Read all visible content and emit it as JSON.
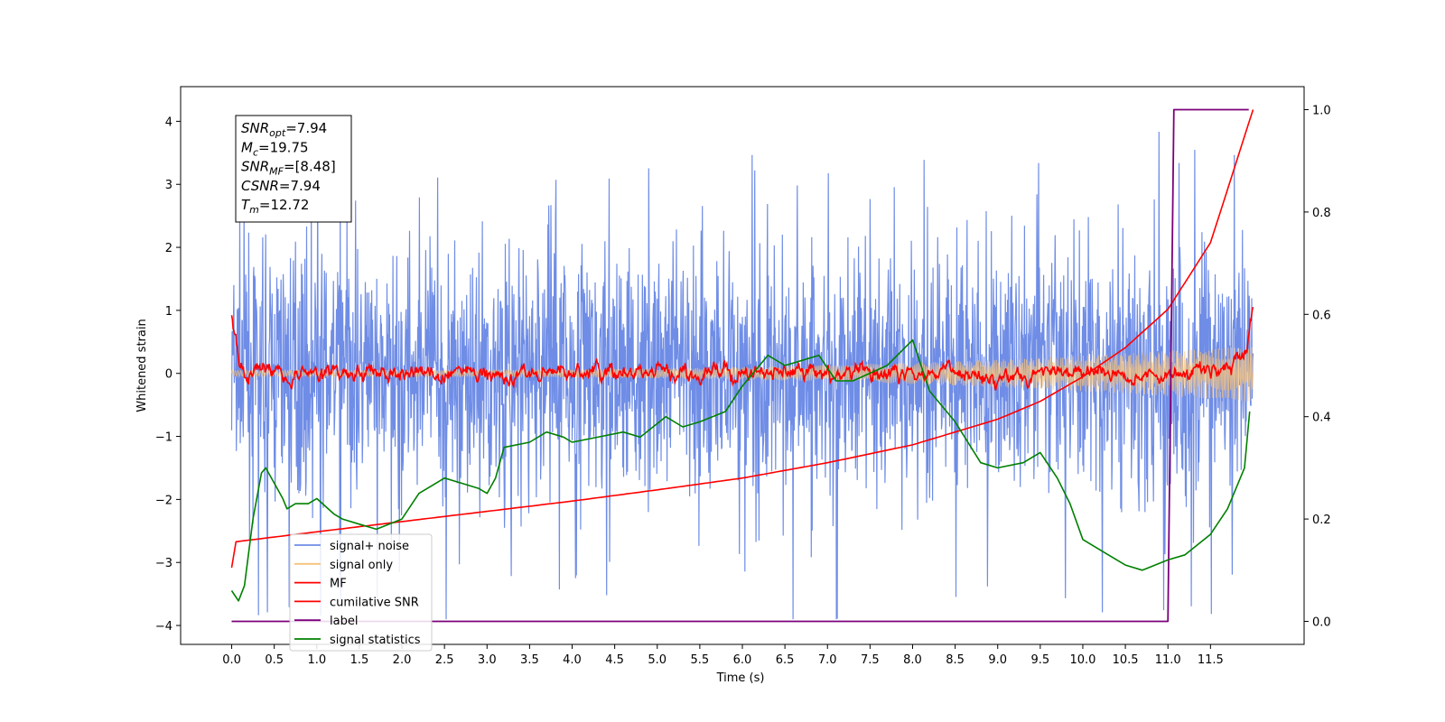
{
  "chart_data": {
    "type": "line",
    "xlabel": "Time (s)",
    "ylabel": "Whitened strain",
    "xlim": [
      -0.6,
      12.6
    ],
    "ylim": [
      -4.3,
      4.55
    ],
    "ylim_right": [
      -0.045,
      1.045
    ],
    "x_ticks": [
      "0.0",
      "0.5",
      "1.0",
      "1.5",
      "2.0",
      "2.5",
      "3.0",
      "3.5",
      "4.0",
      "4.5",
      "5.0",
      "5.5",
      "6.0",
      "6.5",
      "7.0",
      "7.5",
      "8.0",
      "8.5",
      "9.0",
      "9.5",
      "10.0",
      "10.5",
      "11.0",
      "11.5"
    ],
    "y_ticks": [
      "4",
      "3",
      "2",
      "1",
      "0",
      "−1",
      "−2",
      "−3",
      "−4"
    ],
    "y_ticks_right": [
      "1.0",
      "0.8",
      "0.6",
      "0.4",
      "0.2",
      "0.0"
    ],
    "grid": false,
    "legend_position": "lower-left",
    "info_box": [
      {
        "main": "SNR",
        "sub": "opt",
        "value": "=7.94"
      },
      {
        "main": "M",
        "sub": "c",
        "value": "=19.75"
      },
      {
        "main": "SNR",
        "sub": "MF",
        "value": "=[8.48]"
      },
      {
        "main": "CSNR",
        "sub": "",
        "value": "=7.94"
      },
      {
        "main": "T",
        "sub": "m",
        "value": "=12.72"
      }
    ],
    "series": [
      {
        "name": "signal+ noise",
        "color": "#6f8de6",
        "axis": "left",
        "envelope": {
          "x": [
            0,
            12
          ],
          "typical_range": [
            -1.5,
            1.7
          ],
          "max": 4.15,
          "min": -3.9
        }
      },
      {
        "name": "signal only",
        "color": "#f5c27a",
        "axis": "left",
        "chirp": {
          "x": [
            0,
            12
          ],
          "amplitude_start": 0.05,
          "amplitude_end": 0.45
        }
      },
      {
        "name": "MF",
        "color": "#ff0000",
        "axis": "left",
        "x": [
          0.0,
          0.05,
          0.1,
          0.2,
          0.3,
          0.4,
          0.6,
          1.0,
          2.0,
          3.0,
          4.0,
          5.0,
          6.0,
          7.0,
          8.0,
          9.0,
          10.0,
          11.0,
          11.5,
          11.8,
          11.93,
          12.0
        ],
        "y": [
          0.95,
          0.7,
          0.1,
          -0.05,
          0.25,
          0.1,
          0.0,
          0.0,
          0.0,
          0.0,
          0.0,
          0.0,
          0.0,
          0.0,
          0.0,
          0.0,
          0.0,
          0.0,
          0.05,
          0.15,
          0.4,
          0.95
        ]
      },
      {
        "name": "cumilative SNR",
        "color": "#ff0000",
        "axis": "right",
        "x": [
          0.0,
          0.02,
          1.0,
          2.0,
          3.0,
          4.0,
          5.0,
          6.0,
          7.0,
          8.0,
          9.0,
          9.5,
          10.0,
          10.5,
          11.0,
          11.5,
          12.0
        ],
        "y": [
          0.105,
          0.155,
          0.175,
          0.195,
          0.215,
          0.235,
          0.257,
          0.28,
          0.31,
          0.345,
          0.395,
          0.43,
          0.478,
          0.535,
          0.61,
          0.74,
          1.0
        ]
      },
      {
        "name": "label",
        "color": "#7b007b",
        "axis": "right",
        "x": [
          0.0,
          11.0,
          11.07,
          11.95
        ],
        "y": [
          0.0,
          0.0,
          1.0,
          1.0
        ]
      },
      {
        "name": "signal statistics",
        "color": "#008000",
        "axis": "right",
        "x": [
          0.0,
          0.08,
          0.15,
          0.25,
          0.35,
          0.4,
          0.5,
          0.6,
          0.65,
          0.75,
          0.9,
          1.0,
          1.2,
          1.3,
          1.5,
          1.7,
          2.0,
          2.2,
          2.4,
          2.5,
          2.7,
          2.9,
          3.0,
          3.1,
          3.2,
          3.5,
          3.7,
          3.9,
          4.0,
          4.3,
          4.6,
          4.8,
          5.1,
          5.3,
          5.5,
          5.8,
          6.0,
          6.3,
          6.5,
          6.9,
          7.1,
          7.3,
          7.7,
          8.0,
          8.2,
          8.5,
          8.8,
          9.0,
          9.3,
          9.5,
          9.7,
          9.85,
          10.0,
          10.3,
          10.5,
          10.7,
          11.0,
          11.2,
          11.5,
          11.7,
          11.9,
          11.96
        ],
        "y": [
          0.06,
          0.04,
          0.07,
          0.2,
          0.29,
          0.3,
          0.27,
          0.24,
          0.22,
          0.23,
          0.23,
          0.24,
          0.21,
          0.2,
          0.19,
          0.18,
          0.2,
          0.25,
          0.27,
          0.28,
          0.27,
          0.26,
          0.25,
          0.28,
          0.34,
          0.35,
          0.37,
          0.36,
          0.35,
          0.36,
          0.37,
          0.36,
          0.4,
          0.38,
          0.39,
          0.41,
          0.46,
          0.52,
          0.5,
          0.52,
          0.47,
          0.47,
          0.5,
          0.55,
          0.45,
          0.39,
          0.31,
          0.3,
          0.31,
          0.33,
          0.28,
          0.23,
          0.16,
          0.13,
          0.11,
          0.1,
          0.12,
          0.13,
          0.17,
          0.22,
          0.3,
          0.41
        ]
      }
    ]
  }
}
